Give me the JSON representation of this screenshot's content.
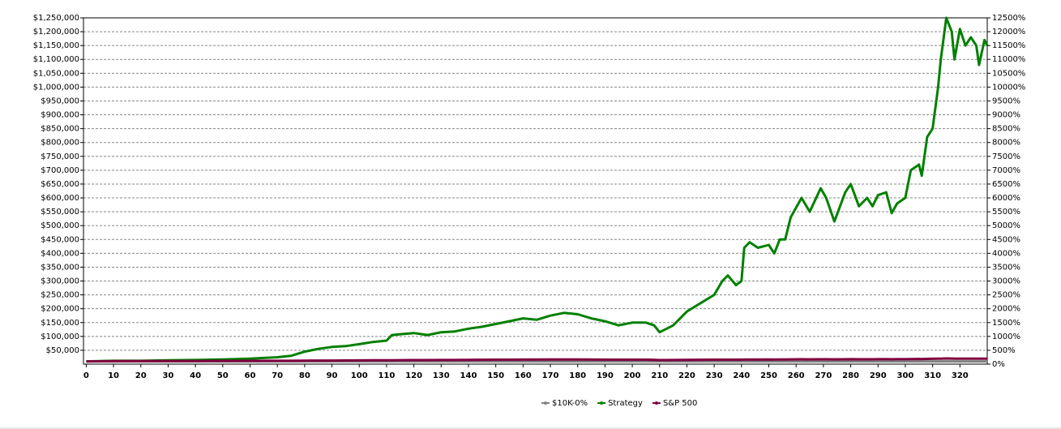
{
  "chart_data": {
    "type": "line",
    "x": [
      0,
      10,
      20,
      30,
      40,
      50,
      60,
      70,
      75,
      80,
      85,
      90,
      95,
      100,
      105,
      110,
      112,
      115,
      120,
      125,
      130,
      135,
      140,
      145,
      150,
      155,
      160,
      165,
      170,
      175,
      180,
      185,
      190,
      195,
      200,
      205,
      208,
      210,
      215,
      220,
      225,
      230,
      233,
      235,
      238,
      240,
      241,
      243,
      246,
      250,
      252,
      254,
      256,
      258,
      262,
      265,
      269,
      271,
      274,
      278,
      280,
      283,
      286,
      288,
      290,
      293,
      295,
      297,
      300,
      302,
      305,
      306,
      308,
      310,
      312,
      313,
      315,
      317,
      318,
      320,
      322,
      324,
      326,
      327,
      329,
      330
    ],
    "series": [
      {
        "name": "$10K-0%",
        "color": "#808080",
        "values": [
          10000,
          10000,
          10000,
          10000,
          10000,
          10000,
          10000,
          10000,
          10000,
          10000,
          10000,
          10000,
          10000,
          10000,
          10000,
          10000,
          10000,
          10000,
          10000,
          10000,
          10000,
          10000,
          10000,
          10000,
          10000,
          10000,
          10000,
          10000,
          10000,
          10000,
          10000,
          10000,
          10000,
          10000,
          10000,
          10000,
          10000,
          10000,
          10000,
          10000,
          10000,
          10000,
          10000,
          10000,
          10000,
          10000,
          10000,
          10000,
          10000,
          10000,
          10000,
          10000,
          10000,
          10000,
          10000,
          10000,
          10000,
          10000,
          10000,
          10000,
          10000,
          10000,
          10000,
          10000,
          10000,
          10000,
          10000,
          10000,
          10000,
          10000,
          10000,
          10000,
          10000,
          10000,
          10000,
          10000,
          10000,
          10000,
          10000,
          10000,
          10000,
          10000,
          10000,
          10000,
          10000,
          10000
        ]
      },
      {
        "name": "Strategy",
        "color": "#008000",
        "values": [
          10000,
          12000,
          12000,
          14000,
          15000,
          17000,
          20000,
          25000,
          30000,
          45000,
          55000,
          62000,
          65000,
          72000,
          80000,
          85000,
          105000,
          108000,
          112000,
          105000,
          115000,
          118000,
          128000,
          135000,
          145000,
          155000,
          165000,
          160000,
          175000,
          185000,
          180000,
          165000,
          155000,
          140000,
          150000,
          150000,
          140000,
          115000,
          140000,
          190000,
          220000,
          250000,
          300000,
          320000,
          285000,
          300000,
          420000,
          440000,
          420000,
          430000,
          400000,
          450000,
          450000,
          530000,
          600000,
          550000,
          635000,
          600000,
          515000,
          620000,
          650000,
          570000,
          600000,
          570000,
          610000,
          620000,
          545000,
          580000,
          600000,
          700000,
          720000,
          680000,
          820000,
          850000,
          1000000,
          1100000,
          1250000,
          1200000,
          1100000,
          1210000,
          1150000,
          1180000,
          1150000,
          1080000,
          1170000,
          1150000
        ]
      },
      {
        "name": "S&P 500",
        "color": "#800040",
        "values": [
          10000,
          10500,
          10800,
          11000,
          11200,
          11500,
          11800,
          12000,
          12000,
          12500,
          12800,
          13000,
          13200,
          13500,
          13800,
          14000,
          14000,
          14200,
          14500,
          14500,
          14800,
          15000,
          15500,
          15800,
          16000,
          16200,
          16500,
          16500,
          16800,
          17000,
          16800,
          16500,
          16200,
          16000,
          16200,
          16000,
          15500,
          14500,
          15000,
          15500,
          15800,
          16000,
          16200,
          16200,
          16000,
          16000,
          16300,
          16500,
          16500,
          16800,
          16500,
          16800,
          17000,
          17200,
          17500,
          17300,
          17600,
          17500,
          17200,
          17600,
          17800,
          17500,
          17700,
          17500,
          17800,
          18000,
          17600,
          17900,
          18000,
          18500,
          18800,
          18500,
          19000,
          19200,
          19500,
          19800,
          20500,
          20200,
          19800,
          20000,
          19800,
          20000,
          19900,
          19700,
          20000,
          19900
        ]
      }
    ],
    "xlim": [
      -1,
      330
    ],
    "xticks": [
      0,
      10,
      20,
      30,
      40,
      50,
      60,
      70,
      80,
      90,
      100,
      110,
      120,
      130,
      140,
      150,
      160,
      170,
      180,
      190,
      200,
      210,
      220,
      230,
      240,
      250,
      260,
      270,
      280,
      290,
      300,
      310,
      320
    ],
    "ylim": [
      0,
      1250000
    ],
    "yticks": [
      {
        "value": 50000,
        "label": "$50,000"
      },
      {
        "value": 100000,
        "label": "$100,000"
      },
      {
        "value": 150000,
        "label": "$150,000"
      },
      {
        "value": 200000,
        "label": "$200,000"
      },
      {
        "value": 250000,
        "label": "$250,000"
      },
      {
        "value": 300000,
        "label": "$300,000"
      },
      {
        "value": 350000,
        "label": "$350,000"
      },
      {
        "value": 400000,
        "label": "$400,000"
      },
      {
        "value": 450000,
        "label": "$450,000"
      },
      {
        "value": 500000,
        "label": "$500,000"
      },
      {
        "value": 550000,
        "label": "$550,000"
      },
      {
        "value": 600000,
        "label": "$600,000"
      },
      {
        "value": 650000,
        "label": "$650,000"
      },
      {
        "value": 700000,
        "label": "$700,000"
      },
      {
        "value": 750000,
        "label": "$750,000"
      },
      {
        "value": 800000,
        "label": "$800,000"
      },
      {
        "value": 850000,
        "label": "$850,000"
      },
      {
        "value": 900000,
        "label": "$900,000"
      },
      {
        "value": 950000,
        "label": "$950,000"
      },
      {
        "value": 1000000,
        "label": "$1,000,000"
      },
      {
        "value": 1050000,
        "label": "$1,050,000"
      },
      {
        "value": 1100000,
        "label": "$1,100,000"
      },
      {
        "value": 1150000,
        "label": "$1,150,000"
      },
      {
        "value": 1200000,
        "label": "$1,200,000"
      },
      {
        "value": 1250000,
        "label": "$1,250,000"
      }
    ],
    "y2lim": [
      0,
      12500
    ],
    "y2ticks": [
      {
        "value": 0,
        "label": "0%"
      },
      {
        "value": 500,
        "label": "500%"
      },
      {
        "value": 1000,
        "label": "1000%"
      },
      {
        "value": 1500,
        "label": "1500%"
      },
      {
        "value": 2000,
        "label": "2000%"
      },
      {
        "value": 2500,
        "label": "2500%"
      },
      {
        "value": 3000,
        "label": "3000%"
      },
      {
        "value": 3500,
        "label": "3500%"
      },
      {
        "value": 4000,
        "label": "4000%"
      },
      {
        "value": 4500,
        "label": "4500%"
      },
      {
        "value": 5000,
        "label": "5000%"
      },
      {
        "value": 5500,
        "label": "5500%"
      },
      {
        "value": 6000,
        "label": "6000%"
      },
      {
        "value": 6500,
        "label": "6500%"
      },
      {
        "value": 7000,
        "label": "7000%"
      },
      {
        "value": 7500,
        "label": "7500%"
      },
      {
        "value": 8000,
        "label": "8000%"
      },
      {
        "value": 8500,
        "label": "8500%"
      },
      {
        "value": 9000,
        "label": "9000%"
      },
      {
        "value": 9500,
        "label": "9500%"
      },
      {
        "value": 10000,
        "label": "10000%"
      },
      {
        "value": 10500,
        "label": "10500%"
      },
      {
        "value": 11000,
        "label": "11000%"
      },
      {
        "value": 11500,
        "label": "11500%"
      },
      {
        "value": 12000,
        "label": "12000%"
      },
      {
        "value": 12500,
        "label": "12500%"
      }
    ],
    "grid": true,
    "legend": "bottom"
  }
}
